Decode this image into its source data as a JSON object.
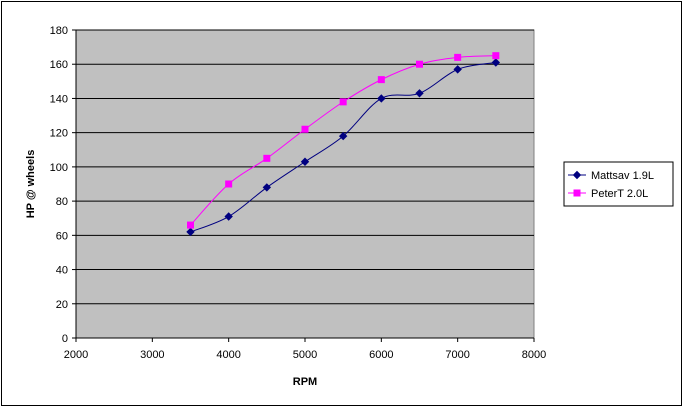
{
  "chart_data": {
    "type": "line",
    "title": "",
    "xlabel": "RPM",
    "ylabel": "HP @ wheels",
    "xlim": [
      2000,
      8000
    ],
    "ylim": [
      0,
      180
    ],
    "x_ticks": [
      2000,
      3000,
      4000,
      5000,
      6000,
      7000,
      8000
    ],
    "y_ticks": [
      0,
      20,
      40,
      60,
      80,
      100,
      120,
      140,
      160,
      180
    ],
    "grid": "horizontal",
    "plot_background": "#c0c0c0",
    "legend_position": "right",
    "series": [
      {
        "name": "Mattsav 1.9L",
        "color": "#000080",
        "marker": "diamond",
        "x": [
          3500,
          4000,
          4500,
          5000,
          5500,
          6000,
          6500,
          7000,
          7500
        ],
        "y": [
          62,
          71,
          88,
          103,
          118,
          140,
          143,
          157,
          161
        ]
      },
      {
        "name": "PeterT 2.0L",
        "color": "#ff00ff",
        "marker": "square",
        "x": [
          3500,
          4000,
          4500,
          5000,
          5500,
          6000,
          6500,
          7000,
          7500
        ],
        "y": [
          66,
          90,
          105,
          122,
          138,
          151,
          160,
          164,
          165
        ]
      }
    ]
  }
}
